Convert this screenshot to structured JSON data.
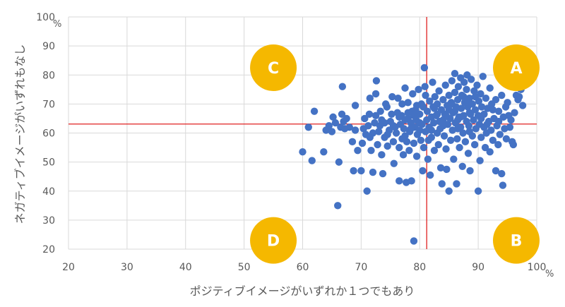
{
  "chart_data": {
    "type": "scatter",
    "xlabel": "ポジティブイメージがいずれか１つでもあり",
    "ylabel": "ネガティブイメージがいずれもなし",
    "x_unit": "%",
    "y_unit": "%",
    "xlim": [
      20,
      100
    ],
    "ylim": [
      20,
      100
    ],
    "xticks": [
      "20",
      "30",
      "40",
      "50",
      "60",
      "70",
      "80",
      "90",
      "100"
    ],
    "yticks": [
      "20",
      "30",
      "40",
      "50",
      "60",
      "70",
      "80",
      "90",
      "100"
    ],
    "grid": true,
    "reference_lines": {
      "x": 81.2,
      "y": 63.1,
      "color": "#e02020"
    },
    "point_color": "#4472c4",
    "quadrant_color": "#f5b800",
    "quadrants": [
      {
        "label": "A",
        "x": 96.5,
        "y": 82.5
      },
      {
        "label": "B",
        "x": 96.5,
        "y": 23.0
      },
      {
        "label": "C",
        "x": 55.0,
        "y": 82.5
      },
      {
        "label": "D",
        "x": 55.0,
        "y": 23.0
      }
    ],
    "series": [
      {
        "points": [
          [
            60.0,
            53.5
          ],
          [
            61.0,
            62.0
          ],
          [
            61.6,
            50.5
          ],
          [
            62.0,
            67.5
          ],
          [
            63.6,
            53.5
          ],
          [
            64.0,
            61.0
          ],
          [
            64.5,
            62.5
          ],
          [
            65.0,
            60.5
          ],
          [
            65.2,
            65.5
          ],
          [
            65.6,
            63.5
          ],
          [
            66.0,
            35.0
          ],
          [
            66.2,
            50.0
          ],
          [
            66.5,
            62.0
          ],
          [
            66.7,
            66.5
          ],
          [
            66.8,
            76.0
          ],
          [
            67.0,
            64.0
          ],
          [
            67.2,
            61.5
          ],
          [
            67.5,
            65.0
          ],
          [
            68.0,
            62.0
          ],
          [
            68.5,
            57.0
          ],
          [
            68.7,
            47.0
          ],
          [
            69.0,
            61.0
          ],
          [
            69.0,
            69.5
          ],
          [
            69.4,
            54.0
          ],
          [
            70.0,
            47.0
          ],
          [
            70.2,
            56.5
          ],
          [
            70.4,
            61.5
          ],
          [
            70.6,
            65.0
          ],
          [
            70.8,
            59.5
          ],
          [
            71.0,
            40.0
          ],
          [
            71.2,
            62.5
          ],
          [
            71.4,
            66.5
          ],
          [
            71.5,
            72.0
          ],
          [
            71.7,
            54.0
          ],
          [
            72.0,
            46.5
          ],
          [
            72.0,
            60.0
          ],
          [
            72.3,
            63.5
          ],
          [
            72.5,
            73.5
          ],
          [
            72.6,
            78.0
          ],
          [
            72.8,
            56.0
          ],
          [
            73.0,
            60.5
          ],
          [
            73.2,
            62.5
          ],
          [
            73.3,
            67.5
          ],
          [
            73.5,
            52.5
          ],
          [
            73.7,
            46.0
          ],
          [
            74.0,
            58.5
          ],
          [
            74.0,
            63.5
          ],
          [
            74.2,
            70.0
          ],
          [
            74.4,
            69.0
          ],
          [
            74.5,
            55.5
          ],
          [
            74.8,
            61.0
          ],
          [
            75.0,
            64.0
          ],
          [
            75.2,
            66.5
          ],
          [
            75.3,
            72.5
          ],
          [
            75.5,
            57.0
          ],
          [
            75.6,
            49.5
          ],
          [
            75.8,
            62.0
          ],
          [
            76.0,
            60.0
          ],
          [
            76.2,
            67.0
          ],
          [
            76.3,
            72.0
          ],
          [
            76.5,
            55.0
          ],
          [
            76.5,
            43.5
          ],
          [
            76.7,
            63.0
          ],
          [
            76.9,
            66.0
          ],
          [
            77.0,
            58.0
          ],
          [
            77.0,
            70.0
          ],
          [
            77.2,
            52.5
          ],
          [
            77.3,
            61.5
          ],
          [
            77.5,
            64.5
          ],
          [
            77.5,
            75.5
          ],
          [
            77.7,
            43.0
          ],
          [
            77.8,
            57.0
          ],
          [
            78.0,
            65.0
          ],
          [
            78.0,
            70.5
          ],
          [
            78.2,
            54.0
          ],
          [
            78.3,
            60.5
          ],
          [
            78.5,
            63.5
          ],
          [
            78.6,
            43.5
          ],
          [
            78.7,
            67.5
          ],
          [
            78.8,
            73.5
          ],
          [
            79.0,
            22.8
          ],
          [
            79.0,
            56.5
          ],
          [
            79.2,
            62.0
          ],
          [
            79.3,
            68.0
          ],
          [
            79.4,
            64.5
          ],
          [
            79.5,
            52.0
          ],
          [
            79.6,
            59.5
          ],
          [
            79.8,
            75.0
          ],
          [
            80.0,
            61.0
          ],
          [
            80.0,
            66.5
          ],
          [
            80.2,
            57.5
          ],
          [
            80.3,
            70.0
          ],
          [
            80.4,
            63.0
          ],
          [
            80.5,
            47.0
          ],
          [
            80.6,
            69.0
          ],
          [
            80.7,
            55.0
          ],
          [
            80.8,
            82.5
          ],
          [
            80.9,
            76.0
          ],
          [
            81.0,
            60.5
          ],
          [
            81.0,
            73.0
          ],
          [
            81.2,
            64.5
          ],
          [
            81.3,
            67.5
          ],
          [
            81.4,
            51.0
          ],
          [
            81.6,
            62.0
          ],
          [
            81.7,
            71.0
          ],
          [
            81.8,
            45.5
          ],
          [
            82.0,
            65.5
          ],
          [
            82.0,
            58.5
          ],
          [
            82.2,
            77.5
          ],
          [
            82.3,
            69.0
          ],
          [
            82.4,
            63.5
          ],
          [
            82.5,
            54.0
          ],
          [
            82.6,
            72.5
          ],
          [
            82.8,
            66.0
          ],
          [
            83.0,
            60.0
          ],
          [
            83.0,
            70.0
          ],
          [
            83.2,
            56.0
          ],
          [
            83.3,
            74.5
          ],
          [
            83.4,
            64.0
          ],
          [
            83.6,
            48.0
          ],
          [
            83.7,
            68.0
          ],
          [
            83.8,
            42.5
          ],
          [
            84.0,
            62.5
          ],
          [
            84.0,
            71.5
          ],
          [
            84.2,
            59.0
          ],
          [
            84.3,
            66.5
          ],
          [
            84.4,
            76.5
          ],
          [
            84.5,
            54.5
          ],
          [
            84.6,
            47.5
          ],
          [
            84.7,
            69.5
          ],
          [
            84.8,
            63.0
          ],
          [
            85.0,
            73.0
          ],
          [
            85.0,
            40.0
          ],
          [
            85.2,
            65.0
          ],
          [
            85.3,
            57.5
          ],
          [
            85.4,
            70.5
          ],
          [
            85.5,
            78.0
          ],
          [
            85.6,
            61.0
          ],
          [
            85.7,
            67.0
          ],
          [
            85.8,
            51.0
          ],
          [
            86.0,
            74.0
          ],
          [
            86.0,
            80.5
          ],
          [
            86.1,
            63.5
          ],
          [
            86.2,
            69.0
          ],
          [
            86.3,
            42.5
          ],
          [
            86.4,
            58.0
          ],
          [
            86.5,
            71.5
          ],
          [
            86.6,
            76.0
          ],
          [
            86.7,
            65.5
          ],
          [
            86.8,
            55.0
          ],
          [
            87.0,
            79.0
          ],
          [
            87.0,
            62.0
          ],
          [
            87.1,
            68.5
          ],
          [
            87.2,
            73.0
          ],
          [
            87.3,
            48.5
          ],
          [
            87.4,
            60.0
          ],
          [
            87.5,
            66.0
          ],
          [
            87.6,
            77.5
          ],
          [
            87.7,
            70.5
          ],
          [
            87.8,
            57.0
          ],
          [
            88.0,
            64.0
          ],
          [
            88.0,
            75.0
          ],
          [
            88.1,
            80.0
          ],
          [
            88.2,
            69.0
          ],
          [
            88.3,
            53.0
          ],
          [
            88.4,
            62.5
          ],
          [
            88.5,
            72.0
          ],
          [
            88.6,
            47.0
          ],
          [
            88.7,
            66.5
          ],
          [
            88.8,
            78.5
          ],
          [
            89.0,
            59.0
          ],
          [
            89.0,
            70.0
          ],
          [
            89.2,
            64.5
          ],
          [
            89.3,
            74.5
          ],
          [
            89.4,
            56.0
          ],
          [
            89.5,
            68.0
          ],
          [
            89.6,
            61.5
          ],
          [
            89.8,
            76.5
          ],
          [
            90.0,
            40.0
          ],
          [
            90.0,
            66.0
          ],
          [
            90.1,
            71.0
          ],
          [
            90.2,
            63.0
          ],
          [
            90.3,
            50.5
          ],
          [
            90.4,
            73.5
          ],
          [
            90.5,
            58.5
          ],
          [
            90.6,
            69.0
          ],
          [
            90.8,
            79.5
          ],
          [
            91.0,
            62.0
          ],
          [
            91.0,
            66.5
          ],
          [
            91.2,
            55.0
          ],
          [
            91.3,
            72.0
          ],
          [
            91.4,
            60.0
          ],
          [
            91.6,
            68.5
          ],
          [
            91.8,
            64.0
          ],
          [
            92.0,
            53.5
          ],
          [
            92.0,
            75.5
          ],
          [
            92.2,
            61.0
          ],
          [
            92.3,
            70.0
          ],
          [
            92.5,
            57.5
          ],
          [
            92.7,
            65.0
          ],
          [
            93.0,
            47.0
          ],
          [
            93.0,
            71.5
          ],
          [
            93.2,
            62.5
          ],
          [
            93.4,
            56.0
          ],
          [
            93.5,
            67.5
          ],
          [
            93.7,
            59.5
          ],
          [
            94.0,
            46.0
          ],
          [
            94.0,
            73.0
          ],
          [
            94.2,
            42.0
          ],
          [
            94.3,
            65.5
          ],
          [
            94.5,
            61.5
          ],
          [
            94.7,
            69.0
          ],
          [
            94.8,
            58.0
          ],
          [
            95.0,
            70.5
          ],
          [
            95.2,
            66.0
          ],
          [
            95.4,
            62.0
          ],
          [
            95.6,
            64.5
          ],
          [
            95.8,
            57.0
          ],
          [
            96.0,
            56.0
          ],
          [
            96.2,
            67.0
          ],
          [
            96.5,
            73.0
          ],
          [
            96.8,
            71.5
          ],
          [
            97.0,
            72.5
          ],
          [
            97.3,
            75.0
          ],
          [
            97.6,
            69.5
          ],
          [
            98.0,
            76.5
          ],
          [
            86.5,
            64.5
          ],
          [
            85.5,
            70.0
          ],
          [
            88.5,
            67.0
          ],
          [
            87.5,
            72.5
          ],
          [
            84.5,
            66.0
          ],
          [
            83.5,
            61.5
          ],
          [
            82.5,
            68.5
          ],
          [
            81.5,
            57.5
          ],
          [
            79.5,
            69.5
          ],
          [
            78.5,
            61.5
          ],
          [
            77.5,
            59.0
          ],
          [
            76.5,
            65.5
          ],
          [
            75.5,
            62.5
          ],
          [
            74.5,
            59.5
          ],
          [
            73.5,
            64.5
          ],
          [
            72.5,
            66.0
          ],
          [
            71.5,
            58.5
          ],
          [
            89.5,
            72.5
          ],
          [
            90.5,
            65.0
          ],
          [
            91.5,
            63.0
          ],
          [
            92.5,
            68.0
          ],
          [
            93.5,
            64.0
          ],
          [
            86.0,
            67.5
          ],
          [
            87.0,
            65.5
          ],
          [
            88.0,
            71.0
          ],
          [
            85.0,
            68.0
          ],
          [
            84.0,
            64.5
          ],
          [
            83.0,
            66.5
          ],
          [
            82.0,
            61.0
          ],
          [
            80.0,
            63.5
          ],
          [
            79.0,
            66.0
          ],
          [
            78.0,
            67.0
          ],
          [
            86.5,
            61.5
          ],
          [
            88.5,
            60.5
          ]
        ]
      }
    ]
  }
}
